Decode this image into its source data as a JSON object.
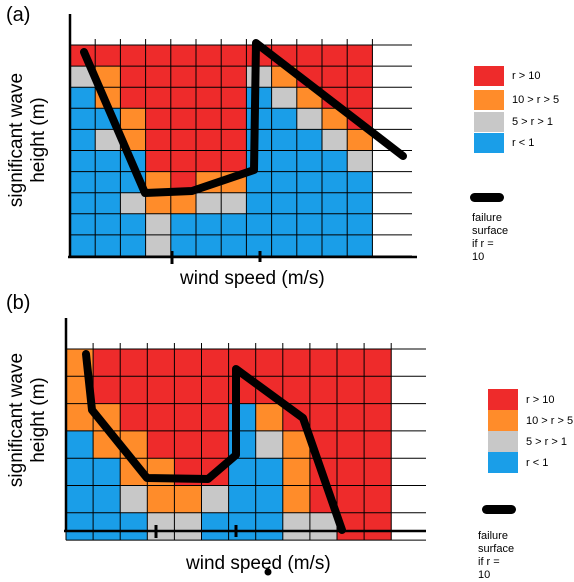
{
  "colors": {
    "r_gt_10": "#ee2b2b",
    "r_10_5": "#ff8c2a",
    "r_5_1": "#c8c8c8",
    "r_lt_1": "#1a9ee8",
    "failure_line": "#000000"
  },
  "panels": [
    {
      "label": "(a)",
      "ylabel_line1": "significant wave",
      "ylabel_line2": "height (m)",
      "xlabel": "wind speed (m/s)",
      "legend": {
        "items": [
          {
            "label": "r > 10",
            "color": "#ee2b2b"
          },
          {
            "label": "10 > r > 5",
            "color": "#ff8c2a"
          },
          {
            "label": "5 > r > 1",
            "color": "#c8c8c8"
          },
          {
            "label": "r < 1",
            "color": "#1a9ee8"
          }
        ],
        "failure_line1": "failure surface",
        "failure_line2": "if r = 10"
      },
      "grid": [
        [
          "R",
          "R",
          "R",
          "R",
          "R",
          "R",
          "R",
          "R",
          "R",
          "R",
          "R",
          "R"
        ],
        [
          "G",
          "O",
          "R",
          "R",
          "R",
          "R",
          "R",
          "G",
          "O",
          "R",
          "R",
          "R"
        ],
        [
          "B",
          "O",
          "R",
          "R",
          "R",
          "R",
          "R",
          "B",
          "G",
          "O",
          "R",
          "R"
        ],
        [
          "B",
          "B",
          "O",
          "R",
          "R",
          "R",
          "R",
          "B",
          "B",
          "G",
          "O",
          "R"
        ],
        [
          "B",
          "G",
          "O",
          "R",
          "R",
          "R",
          "R",
          "B",
          "B",
          "B",
          "G",
          "O"
        ],
        [
          "B",
          "B",
          "B",
          "R",
          "R",
          "R",
          "R",
          "B",
          "B",
          "B",
          "B",
          "G"
        ],
        [
          "B",
          "B",
          "B",
          "O",
          "R",
          "O",
          "O",
          "B",
          "B",
          "B",
          "B",
          "B"
        ],
        [
          "B",
          "B",
          "G",
          "O",
          "O",
          "G",
          "G",
          "B",
          "B",
          "B",
          "B",
          "B"
        ],
        [
          "B",
          "B",
          "B",
          "G",
          "B",
          "B",
          "B",
          "B",
          "B",
          "B",
          "B",
          "B"
        ],
        [
          "B",
          "B",
          "B",
          "G",
          "B",
          "B",
          "B",
          "B",
          "B",
          "B",
          "B",
          "B"
        ]
      ]
    },
    {
      "label": "(b)",
      "ylabel_line1": "significant wave",
      "ylabel_line2": "height (m)",
      "xlabel": "wind speed (m/s)",
      "legend": {
        "items": [
          {
            "label": "r > 10",
            "color": "#ee2b2b"
          },
          {
            "label": "10 > r > 5",
            "color": "#ff8c2a"
          },
          {
            "label": "5 > r > 1",
            "color": "#c8c8c8"
          },
          {
            "label": "r < 1",
            "color": "#1a9ee8"
          }
        ],
        "failure_line1": "failure surface",
        "failure_line2": "if r = 10"
      },
      "grid": [
        [
          "O",
          "R",
          "R",
          "R",
          "R",
          "R",
          "R",
          "R",
          "R",
          "R",
          "R",
          "R"
        ],
        [
          "O",
          "R",
          "R",
          "R",
          "R",
          "R",
          "R",
          "R",
          "R",
          "R",
          "R",
          "R"
        ],
        [
          "O",
          "O",
          "R",
          "R",
          "R",
          "R",
          "B",
          "O",
          "R",
          "R",
          "R",
          "R"
        ],
        [
          "B",
          "O",
          "O",
          "R",
          "R",
          "R",
          "B",
          "G",
          "O",
          "R",
          "R",
          "R"
        ],
        [
          "B",
          "B",
          "O",
          "O",
          "R",
          "R",
          "B",
          "B",
          "O",
          "R",
          "R",
          "R"
        ],
        [
          "B",
          "B",
          "G",
          "O",
          "O",
          "G",
          "B",
          "B",
          "O",
          "R",
          "R",
          "R"
        ],
        [
          "B",
          "B",
          "B",
          "G",
          "G",
          "B",
          "B",
          "B",
          "G",
          "G",
          "R",
          "R"
        ]
      ]
    }
  ]
}
